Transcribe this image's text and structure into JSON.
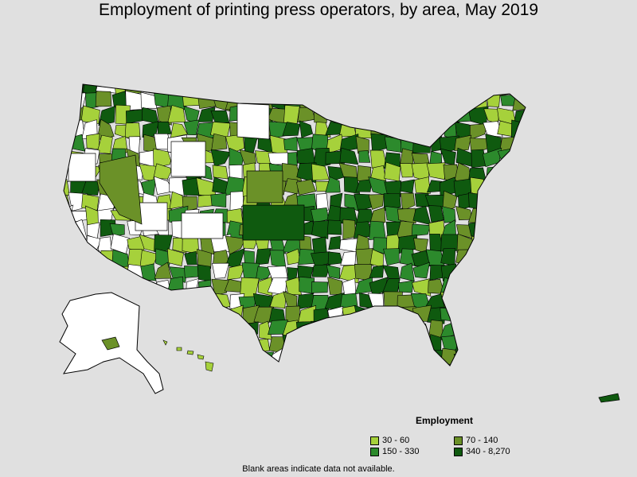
{
  "title": "Employment of printing press operators, by area, May 2019",
  "legend": {
    "title": "Employment",
    "items": [
      {
        "label": "30 - 60",
        "color": "#a6d13b"
      },
      {
        "label": "70 - 140",
        "color": "#6b9128"
      },
      {
        "label": "150 - 330",
        "color": "#2c8a2c"
      },
      {
        "label": "340 - 8,270",
        "color": "#0f5a0f"
      }
    ]
  },
  "footnote": "Blank areas indicate data not available.",
  "colors": {
    "background": "#e0e0e0",
    "no_data": "#ffffff",
    "border": "#000000"
  }
}
